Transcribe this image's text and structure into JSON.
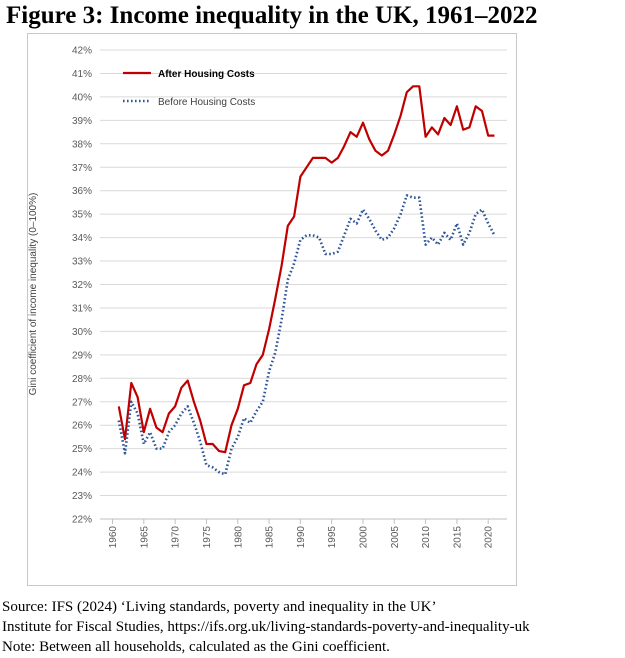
{
  "figure": {
    "title": "Figure 3: Income inequality in the UK, 1961–2022",
    "source_lines": [
      "Source: IFS (2024) ‘Living standards, poverty and inequality in the UK’",
      "Institute for Fiscal Studies, https://ifs.org.uk/living-standards-poverty-and-inequality-uk",
      "Note: Between all households, calculated as the Gini coefficient."
    ]
  },
  "chart_data": {
    "type": "line",
    "title": "",
    "xlabel": "",
    "ylabel": "Gini coefficient of income inequality (0–100%)",
    "xlim": [
      1958,
      2023
    ],
    "ylim": [
      22,
      42
    ],
    "x_ticks": [
      1960,
      1965,
      1970,
      1975,
      1980,
      1985,
      1990,
      1995,
      2000,
      2005,
      2010,
      2015,
      2020
    ],
    "x_tick_labels": [
      "1960",
      "1965",
      "1970",
      "1975",
      "1980",
      "1985",
      "1990",
      "1995",
      "2000",
      "2005",
      "2010",
      "2015",
      "2020"
    ],
    "y_ticks": [
      22,
      23,
      24,
      25,
      26,
      27,
      28,
      29,
      30,
      31,
      32,
      33,
      34,
      35,
      36,
      37,
      38,
      39,
      40,
      41,
      42
    ],
    "y_tick_labels": [
      "22%",
      "23%",
      "24%",
      "25%",
      "26%",
      "27%",
      "28%",
      "29%",
      "30%",
      "31%",
      "32%",
      "33%",
      "34%",
      "35%",
      "36%",
      "37%",
      "38%",
      "39%",
      "40%",
      "41%",
      "42%"
    ],
    "grid": "horizontal",
    "legend_position": "top-left",
    "x": [
      1961,
      1962,
      1963,
      1964,
      1965,
      1966,
      1967,
      1968,
      1969,
      1970,
      1971,
      1972,
      1973,
      1974,
      1975,
      1976,
      1977,
      1978,
      1979,
      1980,
      1981,
      1982,
      1983,
      1984,
      1985,
      1986,
      1987,
      1988,
      1989,
      1990,
      1991,
      1992,
      1993,
      1994,
      1995,
      1996,
      1997,
      1998,
      1999,
      2000,
      2001,
      2002,
      2003,
      2004,
      2005,
      2006,
      2007,
      2008,
      2009,
      2010,
      2011,
      2012,
      2013,
      2014,
      2015,
      2016,
      2017,
      2018,
      2019,
      2020,
      2021
    ],
    "series": [
      {
        "name": "After Housing Costs",
        "color": "#c00000",
        "style": "solid",
        "values": [
          26.8,
          25.4,
          27.8,
          27.2,
          25.7,
          26.7,
          25.9,
          25.7,
          26.5,
          26.8,
          27.6,
          27.9,
          27.0,
          26.2,
          25.2,
          25.2,
          24.9,
          24.85,
          26.0,
          26.7,
          27.7,
          27.8,
          28.6,
          29.0,
          30.1,
          31.4,
          32.8,
          34.5,
          34.9,
          36.6,
          37.0,
          37.4,
          37.4,
          37.4,
          37.2,
          37.4,
          37.9,
          38.5,
          38.3,
          38.9,
          38.2,
          37.7,
          37.5,
          37.7,
          38.4,
          39.2,
          40.2,
          40.45,
          40.45,
          38.3,
          38.7,
          38.4,
          39.1,
          38.8,
          39.6,
          38.6,
          38.7,
          39.6,
          39.4,
          38.35,
          38.35
        ]
      },
      {
        "name": "Before Housing Costs",
        "color": "#2f5597",
        "style": "dotted",
        "values": [
          26.2,
          24.8,
          27.0,
          26.5,
          25.2,
          25.7,
          25.0,
          25.0,
          25.7,
          26.0,
          26.5,
          26.8,
          26.1,
          25.3,
          24.3,
          24.2,
          24.0,
          23.9,
          25.0,
          25.5,
          26.3,
          26.1,
          26.6,
          27.0,
          28.3,
          29.1,
          30.5,
          32.2,
          32.9,
          33.9,
          34.1,
          34.1,
          34.0,
          33.3,
          33.3,
          33.4,
          34.1,
          34.8,
          34.6,
          35.2,
          34.8,
          34.3,
          33.9,
          34.0,
          34.4,
          35.0,
          35.8,
          35.7,
          35.7,
          33.7,
          34.0,
          33.7,
          34.2,
          33.9,
          34.6,
          33.7,
          34.2,
          35.0,
          35.2,
          34.6,
          34.1
        ]
      }
    ]
  }
}
